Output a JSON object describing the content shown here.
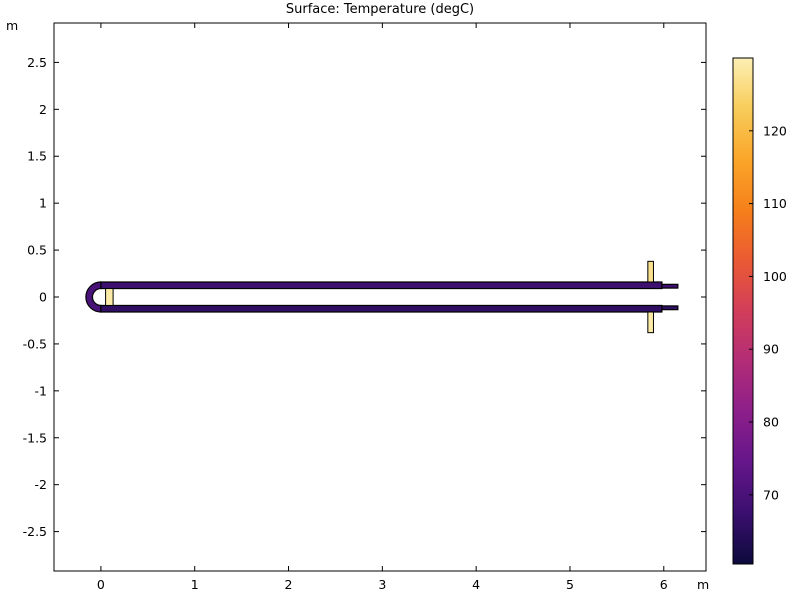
{
  "chart_data": {
    "type": "heatmap",
    "title": "Surface: Temperature (degC)",
    "x_unit": "m",
    "y_unit": "m",
    "xlim": [
      -0.5,
      6.45
    ],
    "ylim": [
      -2.92,
      2.92
    ],
    "x_ticks": [
      "0",
      "1",
      "2",
      "3",
      "4",
      "5",
      "6"
    ],
    "y_ticks": [
      "2.5",
      "2",
      "1.5",
      "1",
      "0.5",
      "0",
      "-0.5",
      "-1",
      "-1.5",
      "-2",
      "-2.5"
    ],
    "colorbar": {
      "range": [
        60.5,
        130
      ],
      "ticks": [
        "120",
        "110",
        "100",
        "90",
        "80",
        "70"
      ],
      "colormap": [
        "#0c0a3c",
        "#3a0f6e",
        "#64168a",
        "#8c1f8a",
        "#b22c77",
        "#d23e5a",
        "#ea5a33",
        "#f6801a",
        "#faa62a",
        "#f8cc5a",
        "#fcf0b4"
      ]
    },
    "geometry": {
      "upper_tube_temperature": 68,
      "lower_tube_temperature": 66,
      "bend_temperature": 70,
      "inlet_stub_temperature": 127,
      "outlet_stub_temperature": 129,
      "end_block_temperature": 129
    }
  }
}
